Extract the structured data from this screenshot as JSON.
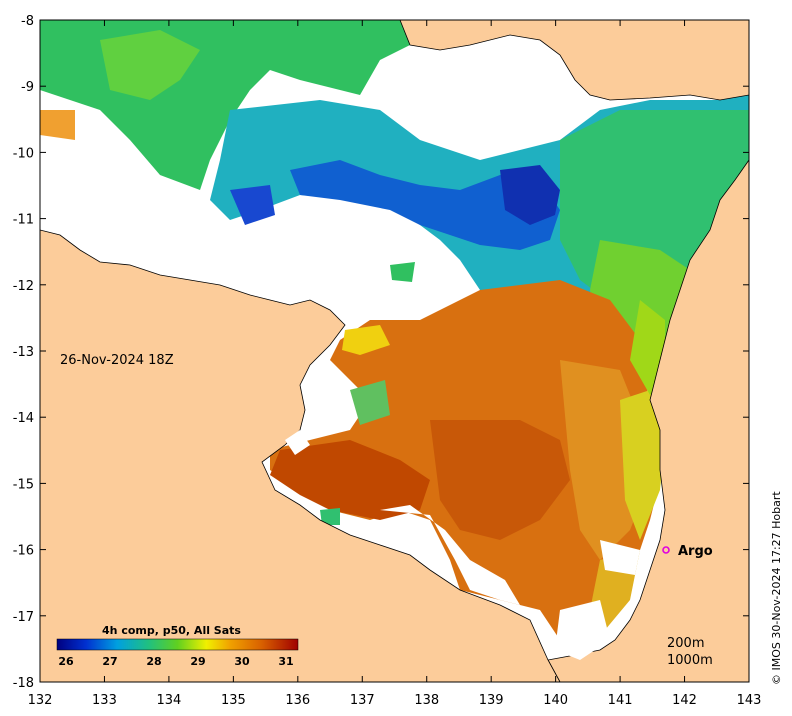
{
  "map": {
    "date_label": "26-Nov-2024 18Z",
    "credit": "© IMOS 30-Nov-2024 17:27 Hobart",
    "argo_label": "Argo",
    "depth_labels": [
      "200m",
      "1000m"
    ],
    "x_ticks": [
      "132",
      "133",
      "134",
      "135",
      "136",
      "137",
      "138",
      "139",
      "140",
      "141",
      "142",
      "143"
    ],
    "y_ticks": [
      "-8",
      "-9",
      "-10",
      "-11",
      "-12",
      "-13",
      "-14",
      "-15",
      "-16",
      "-17",
      "-18"
    ],
    "colorbar": {
      "title": "4h comp, p50, All Sats",
      "ticks": [
        "26",
        "27",
        "28",
        "29",
        "30",
        "31"
      ]
    },
    "colors": {
      "land": "#fccc9a",
      "cloud": "#ffffff",
      "argo": "#e000e0"
    }
  }
}
